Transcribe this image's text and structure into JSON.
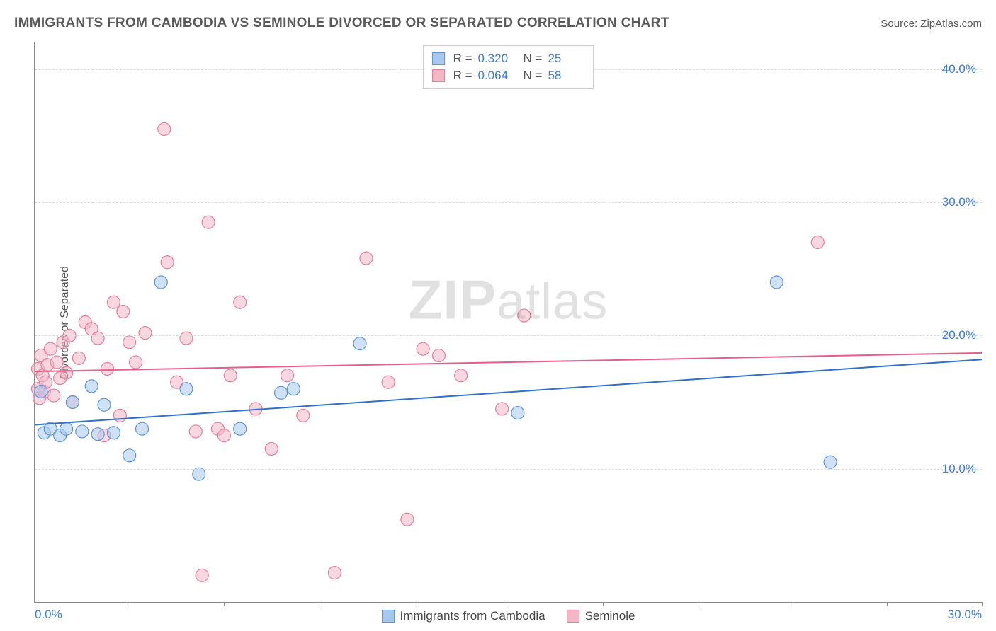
{
  "header": {
    "title": "IMMIGRANTS FROM CAMBODIA VS SEMINOLE DIVORCED OR SEPARATED CORRELATION CHART",
    "source_label": "Source: ",
    "source_value": "ZipAtlas.com"
  },
  "watermark": {
    "bold": "ZIP",
    "rest": "atlas"
  },
  "axes": {
    "y_label": "Divorced or Separated",
    "x_min": 0,
    "x_max": 30,
    "y_min": 0,
    "y_max": 42,
    "y_ticks": [
      10,
      20,
      30,
      40
    ],
    "y_tick_labels": [
      "10.0%",
      "20.0%",
      "30.0%",
      "40.0%"
    ],
    "x_ticks": [
      0,
      3,
      6,
      9,
      12,
      15,
      18,
      21,
      24,
      27,
      30
    ],
    "x_tick_labels_shown": {
      "0": "0.0%",
      "30": "30.0%"
    }
  },
  "chart": {
    "type": "scatter",
    "background_color": "#ffffff",
    "grid_color": "#dcdcdc",
    "axis_color": "#888888",
    "tick_label_color": "#3b7dd8",
    "marker_radius": 9,
    "marker_opacity": 0.55,
    "marker_stroke_width": 1.2,
    "line_width": 2
  },
  "series": [
    {
      "key": "cambodia",
      "label": "Immigrants from Cambodia",
      "fill": "#a8c8ef",
      "stroke": "#5b94d6",
      "line_color": "#2f6fd0",
      "R": "0.320",
      "N": "25",
      "trend": {
        "x1": 0,
        "y1": 13.3,
        "x2": 30,
        "y2": 18.2
      },
      "points": [
        [
          0.2,
          15.8
        ],
        [
          0.3,
          12.7
        ],
        [
          0.5,
          13.0
        ],
        [
          0.8,
          12.5
        ],
        [
          1.0,
          13.0
        ],
        [
          1.2,
          15.0
        ],
        [
          1.5,
          12.8
        ],
        [
          1.8,
          16.2
        ],
        [
          2.0,
          12.6
        ],
        [
          2.2,
          14.8
        ],
        [
          2.5,
          12.7
        ],
        [
          3.0,
          11.0
        ],
        [
          3.4,
          13.0
        ],
        [
          4.0,
          24.0
        ],
        [
          4.8,
          16.0
        ],
        [
          5.2,
          9.6
        ],
        [
          6.5,
          13.0
        ],
        [
          7.8,
          15.7
        ],
        [
          8.2,
          16.0
        ],
        [
          10.3,
          19.4
        ],
        [
          15.3,
          14.2
        ],
        [
          23.5,
          24.0
        ],
        [
          25.2,
          10.5
        ]
      ]
    },
    {
      "key": "seminole",
      "label": "Seminole",
      "fill": "#f4b7c6",
      "stroke": "#e77d9a",
      "line_color": "#e75d87",
      "R": "0.064",
      "N": "58",
      "trend": {
        "x1": 0,
        "y1": 17.3,
        "x2": 30,
        "y2": 18.7
      },
      "points": [
        [
          0.1,
          16.0
        ],
        [
          0.1,
          17.5
        ],
        [
          0.15,
          15.3
        ],
        [
          0.2,
          18.5
        ],
        [
          0.25,
          17.0
        ],
        [
          0.3,
          15.8
        ],
        [
          0.35,
          16.5
        ],
        [
          0.4,
          17.8
        ],
        [
          0.5,
          19.0
        ],
        [
          0.6,
          15.5
        ],
        [
          0.7,
          18.0
        ],
        [
          0.8,
          16.8
        ],
        [
          0.9,
          19.5
        ],
        [
          1.0,
          17.2
        ],
        [
          1.1,
          20.0
        ],
        [
          1.2,
          15.0
        ],
        [
          1.4,
          18.3
        ],
        [
          1.6,
          21.0
        ],
        [
          1.8,
          20.5
        ],
        [
          2.0,
          19.8
        ],
        [
          2.2,
          12.5
        ],
        [
          2.3,
          17.5
        ],
        [
          2.5,
          22.5
        ],
        [
          2.7,
          14.0
        ],
        [
          2.8,
          21.8
        ],
        [
          3.0,
          19.5
        ],
        [
          3.2,
          18.0
        ],
        [
          3.5,
          20.2
        ],
        [
          4.1,
          35.5
        ],
        [
          4.2,
          25.5
        ],
        [
          4.5,
          16.5
        ],
        [
          4.8,
          19.8
        ],
        [
          5.1,
          12.8
        ],
        [
          5.3,
          2.0
        ],
        [
          5.5,
          28.5
        ],
        [
          5.8,
          13.0
        ],
        [
          6.0,
          12.5
        ],
        [
          6.2,
          17.0
        ],
        [
          6.5,
          22.5
        ],
        [
          7.0,
          14.5
        ],
        [
          7.5,
          11.5
        ],
        [
          8.0,
          17.0
        ],
        [
          8.5,
          14.0
        ],
        [
          9.5,
          2.2
        ],
        [
          10.5,
          25.8
        ],
        [
          11.2,
          16.5
        ],
        [
          11.8,
          6.2
        ],
        [
          12.3,
          19.0
        ],
        [
          12.8,
          18.5
        ],
        [
          13.5,
          17.0
        ],
        [
          14.8,
          14.5
        ],
        [
          15.5,
          21.5
        ],
        [
          24.8,
          27.0
        ]
      ]
    }
  ],
  "legend_top": {
    "R_label": "R =",
    "N_label": "N ="
  }
}
